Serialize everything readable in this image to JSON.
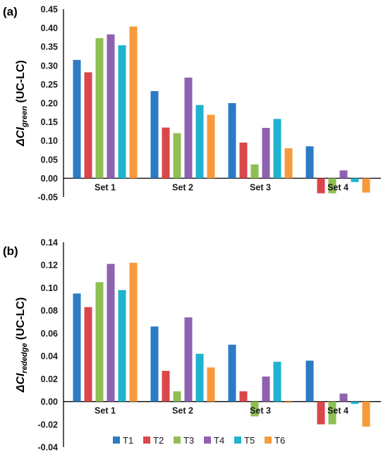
{
  "colors": {
    "T1": "#2e7ac4",
    "T2": "#d9474a",
    "T3": "#8fbf52",
    "T4": "#8e62b0",
    "T5": "#1fb3cf",
    "T6": "#f89a3c"
  },
  "legend": {
    "items": [
      "T1",
      "T2",
      "T3",
      "T4",
      "T5",
      "T6"
    ]
  },
  "chart_data": [
    {
      "type": "bar",
      "panel_label": "(a)",
      "ylabel": "ΔCI_green (UC-LC)",
      "ylabel_main": "ΔCI",
      "ylabel_sub": "green",
      "ylabel_tail": " (UC-LC)",
      "categories": [
        "Set 1",
        "Set 2",
        "Set 3",
        "Set 4"
      ],
      "ylim": [
        -0.05,
        0.45
      ],
      "yticks": [
        "0.45",
        "0.40",
        "0.35",
        "0.30",
        "0.25",
        "0.20",
        "0.15",
        "0.10",
        "0.05",
        "0.00",
        "-0.05"
      ],
      "yticks_values": [
        0.45,
        0.4,
        0.35,
        0.3,
        0.25,
        0.2,
        0.15,
        0.1,
        0.05,
        0.0,
        -0.05
      ],
      "series": [
        {
          "name": "T1",
          "values": [
            0.315,
            0.232,
            0.2,
            0.085
          ]
        },
        {
          "name": "T2",
          "values": [
            0.282,
            0.135,
            0.095,
            -0.04
          ]
        },
        {
          "name": "T3",
          "values": [
            0.373,
            0.12,
            0.037,
            -0.04
          ]
        },
        {
          "name": "T4",
          "values": [
            0.383,
            0.268,
            0.134,
            0.021
          ]
        },
        {
          "name": "T5",
          "values": [
            0.354,
            0.195,
            0.158,
            -0.01
          ]
        },
        {
          "name": "T6",
          "values": [
            0.404,
            0.169,
            0.08,
            -0.038
          ]
        }
      ],
      "grid": false,
      "legend": "none"
    },
    {
      "type": "bar",
      "panel_label": "(b)",
      "ylabel": "ΔCI_rededge (UC-LC)",
      "ylabel_main": "ΔCI",
      "ylabel_sub": "rededge",
      "ylabel_tail": " (UC-LC)",
      "categories": [
        "Set 1",
        "Set 2",
        "Set 3",
        "Set 4"
      ],
      "ylim": [
        -0.04,
        0.14
      ],
      "yticks": [
        "0.14",
        "0.12",
        "0.10",
        "0.08",
        "0.06",
        "0.04",
        "0.02",
        "0.00",
        "-0.02",
        "-0.04"
      ],
      "yticks_values": [
        0.14,
        0.12,
        0.1,
        0.08,
        0.06,
        0.04,
        0.02,
        0.0,
        -0.02,
        -0.04
      ],
      "series": [
        {
          "name": "T1",
          "values": [
            0.095,
            0.066,
            0.05,
            0.036
          ]
        },
        {
          "name": "T2",
          "values": [
            0.083,
            0.027,
            0.009,
            -0.02
          ]
        },
        {
          "name": "T3",
          "values": [
            0.105,
            0.009,
            -0.013,
            -0.02
          ]
        },
        {
          "name": "T4",
          "values": [
            0.121,
            0.074,
            0.022,
            0.007
          ]
        },
        {
          "name": "T5",
          "values": [
            0.098,
            0.042,
            0.035,
            -0.002
          ]
        },
        {
          "name": "T6",
          "values": [
            0.122,
            0.03,
            -0.001,
            -0.022
          ]
        }
      ],
      "grid": false,
      "legend": "bottom"
    }
  ]
}
